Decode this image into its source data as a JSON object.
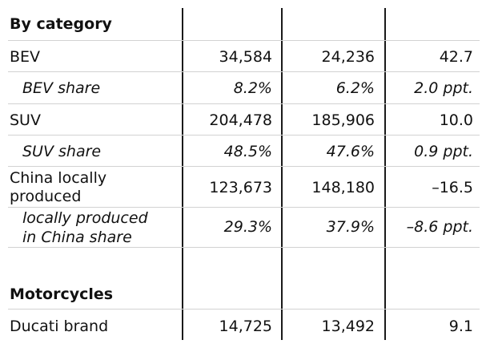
{
  "sections": [
    {
      "heading": "By category",
      "rows": [
        {
          "label": "BEV",
          "v1": "34,584",
          "v2": "24,236",
          "v3": "42.7"
        },
        {
          "label": "BEV share",
          "v1": "8.2%",
          "v2": "6.2%",
          "v3": "2.0 ppt."
        },
        {
          "label": "SUV",
          "v1": "204,478",
          "v2": "185,906",
          "v3": "10.0"
        },
        {
          "label": "SUV share",
          "v1": "48.5%",
          "v2": "47.6%",
          "v3": "0.9 ppt."
        },
        {
          "label_line1": "China locally",
          "label_line2": "produced",
          "v1": "123,673",
          "v2": "148,180",
          "v3": "–16.5"
        },
        {
          "label_line1": "locally produced",
          "label_line2": "in China share",
          "v1": "29.3%",
          "v2": "37.9%",
          "v3": "–8.6 ppt."
        }
      ]
    },
    {
      "heading": "Motorcycles",
      "rows": [
        {
          "label": "Ducati brand",
          "v1": "14,725",
          "v2": "13,492",
          "v3": "9.1"
        }
      ]
    }
  ]
}
